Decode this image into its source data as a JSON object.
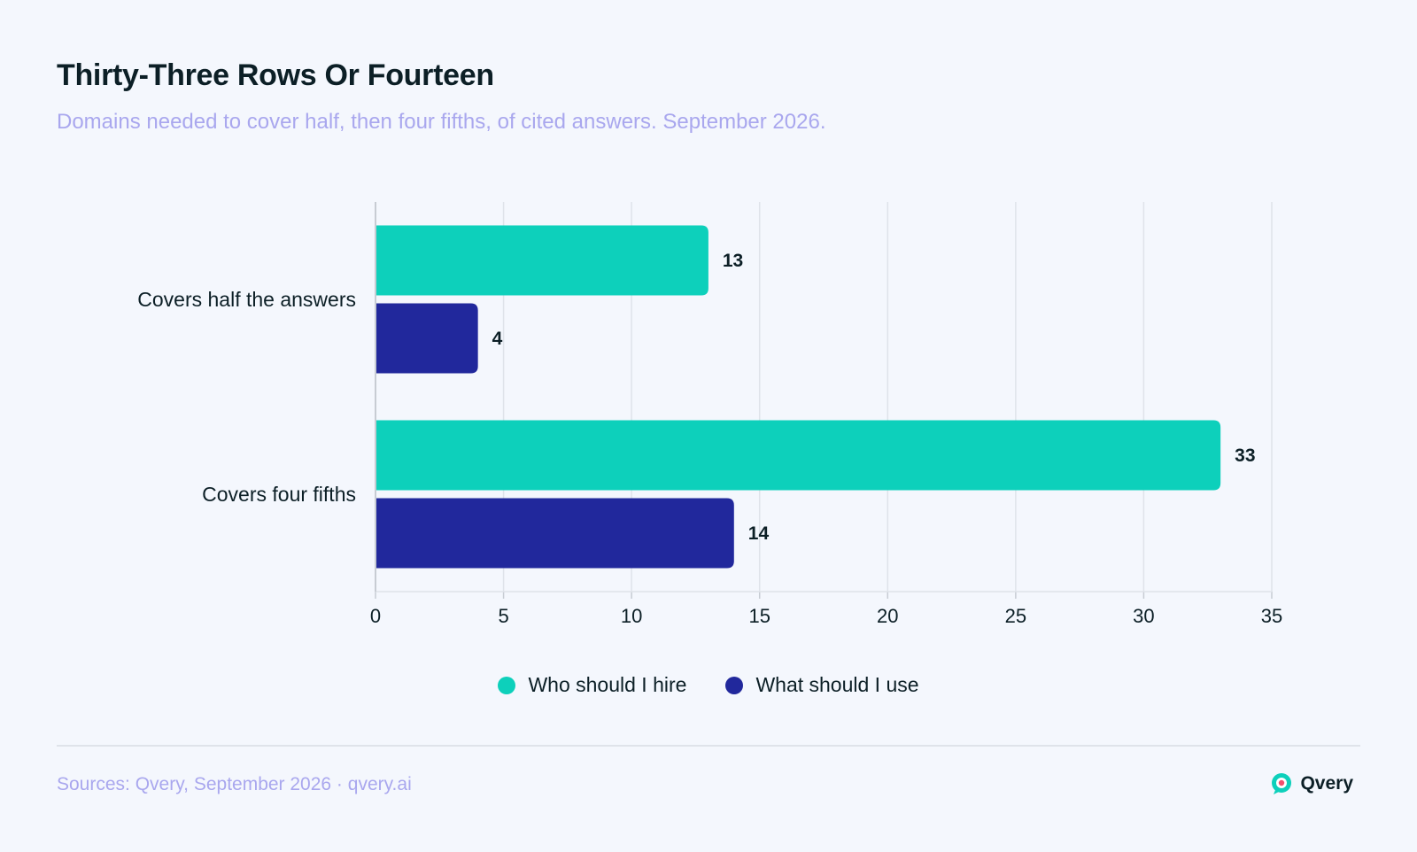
{
  "title": "Thirty-Three Rows Or Fourteen",
  "subtitle": "Domains needed to cover half, then four fifths, of cited answers. September 2026.",
  "source": "Sources: Qvery, September 2026 · qvery.ai",
  "brand": {
    "name": "Qvery",
    "icon": "qvery-logo-icon"
  },
  "colors": {
    "hire": "#0dd0bb",
    "use": "#21289c",
    "grid": "#dfe3ea",
    "axis": "#c7ccd3"
  },
  "chart_data": {
    "type": "bar",
    "orientation": "horizontal",
    "categories": [
      "Covers half the answers",
      "Covers four fifths"
    ],
    "series": [
      {
        "name": "Who should I hire",
        "color": "#0dd0bb",
        "values": [
          13,
          33
        ]
      },
      {
        "name": "What should I use",
        "color": "#21289c",
        "values": [
          4,
          14
        ]
      }
    ],
    "xlim": [
      0,
      35
    ],
    "xticks": [
      0,
      5,
      10,
      15,
      20,
      25,
      30,
      35
    ],
    "grid": true,
    "legend": "bottom-center",
    "data_labels": true
  }
}
